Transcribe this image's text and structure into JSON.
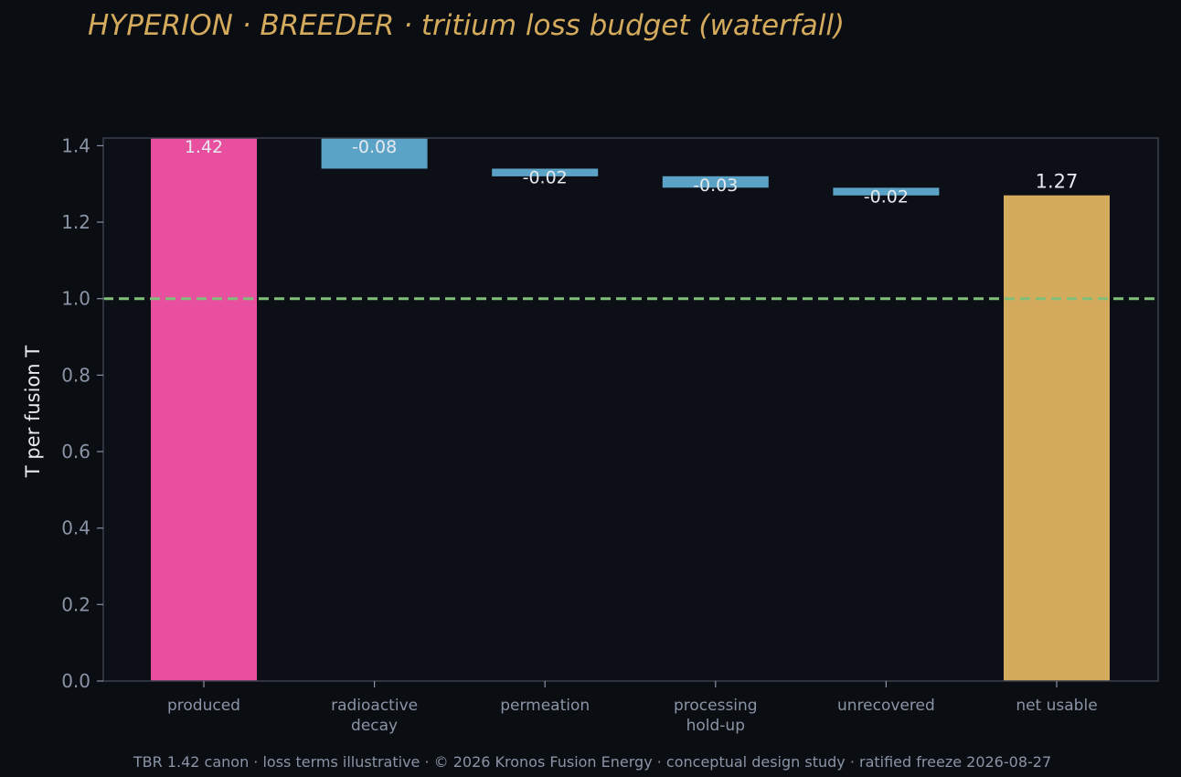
{
  "chart_data": {
    "type": "bar",
    "subtype": "waterfall",
    "title": "HYPERION · BREEDER  ·  tritium loss budget (waterfall)",
    "ylabel": "T per fusion T",
    "xlabel": "",
    "ylim": [
      0,
      1.42
    ],
    "yticks": [
      "0.0",
      "0.2",
      "0.4",
      "0.6",
      "0.8",
      "1.0",
      "1.2",
      "1.4"
    ],
    "ytick_values": [
      0,
      0.2,
      0.4,
      0.6,
      0.8,
      1.0,
      1.2,
      1.4
    ],
    "categories": [
      [
        "produced"
      ],
      [
        "radioactive",
        "decay"
      ],
      [
        "permeation"
      ],
      [
        "processing",
        "hold-up"
      ],
      [
        "unrecovered"
      ],
      [
        "net usable"
      ]
    ],
    "bars": [
      {
        "kind": "total",
        "start": 0,
        "end": 1.42,
        "value": 1.42,
        "label": "1.42"
      },
      {
        "kind": "delta",
        "start": 1.42,
        "end": 1.34,
        "value": -0.08,
        "label": "-0.08"
      },
      {
        "kind": "delta",
        "start": 1.34,
        "end": 1.32,
        "value": -0.02,
        "label": "-0.02"
      },
      {
        "kind": "delta",
        "start": 1.32,
        "end": 1.29,
        "value": -0.03,
        "label": "-0.03"
      },
      {
        "kind": "delta",
        "start": 1.29,
        "end": 1.27,
        "value": -0.02,
        "label": "-0.02"
      },
      {
        "kind": "total",
        "start": 0,
        "end": 1.27,
        "value": 1.27,
        "label": "1.27"
      }
    ],
    "reference_line": {
      "y": 1.0,
      "style": "dashed",
      "color": "#7fbf7a"
    },
    "colors": {
      "produced": "#e84f9f",
      "loss": "#5ba3c6",
      "net": "#d4aa5c",
      "background": "#0a0d12",
      "plot_background": "#0c0f16",
      "axis": "#3a404c",
      "tick_text": "#8a94a6",
      "title": "#d4aa5c"
    },
    "grid": false,
    "legend": "none"
  },
  "footer": "TBR 1.42 canon · loss terms illustrative · © 2026 Kronos Fusion Energy · conceptual design study · ratified freeze 2026-08-27"
}
